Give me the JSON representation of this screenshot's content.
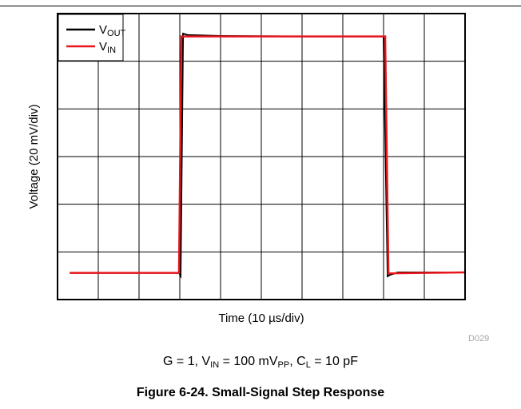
{
  "chart_data": {
    "type": "line",
    "xlabel": "Time (10 µs/div)",
    "ylabel": "Voltage (20 mV/div)",
    "x_divisions": 10,
    "y_divisions": 6,
    "xlim": [
      0,
      10
    ],
    "ylim": [
      0,
      6
    ],
    "x_unit": "div (10 µs/div)",
    "y_unit": "div (20 mV/div)",
    "grid": true,
    "legend": "top-left",
    "series": [
      {
        "name_main": "V",
        "name_sub": "OUT",
        "color": "#000000",
        "x": [
          0.3,
          2.98,
          3.02,
          3.08,
          3.2,
          4.0,
          6.0,
          8.0,
          8.1,
          8.16,
          8.35,
          10.0
        ],
        "y": [
          0.56,
          0.56,
          0.5,
          5.58,
          5.55,
          5.53,
          5.52,
          5.52,
          0.49,
          0.52,
          0.57,
          0.57
        ]
      },
      {
        "name_main": "V",
        "name_sub": "IN",
        "color": "#e8161d",
        "x": [
          0.3,
          2.98,
          3.04,
          8.04,
          8.12,
          10.0
        ],
        "y": [
          0.56,
          0.56,
          5.52,
          5.52,
          0.55,
          0.57
        ]
      }
    ]
  },
  "figure_code": "D029",
  "conditions": {
    "p1": "G = 1, V",
    "s1": "IN",
    "p2": " = 100 mV",
    "s2": "PP",
    "p3": ", C",
    "s3": "L",
    "p4": " = 10 pF"
  },
  "caption": "Figure 6-24. Small-Signal Step Response"
}
